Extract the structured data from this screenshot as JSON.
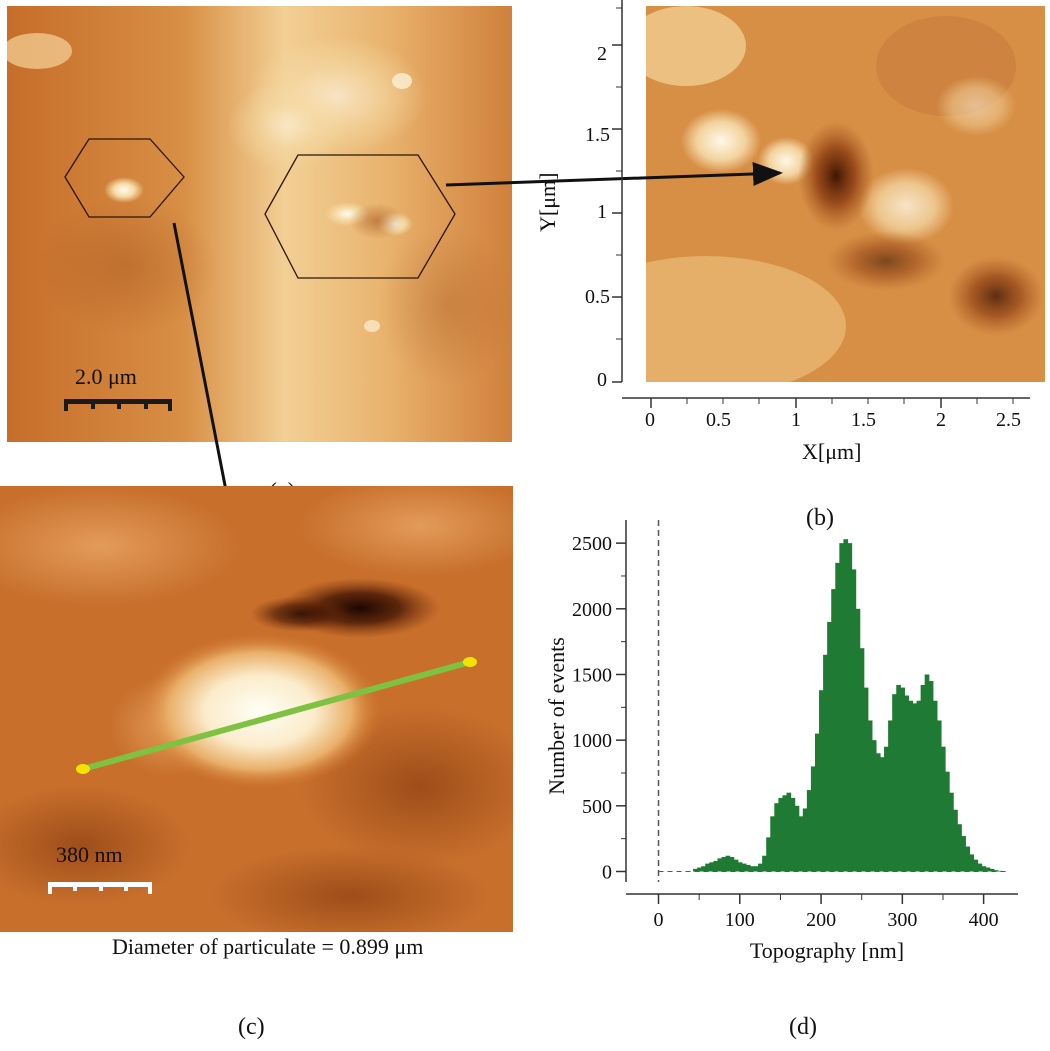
{
  "panels": {
    "a": {
      "label": "(a)",
      "scale_bar": "2.0 μm"
    },
    "b": {
      "label": "(b)",
      "xlabel": "X[μm]",
      "ylabel": "Y[μm]",
      "x_ticks": [
        "0",
        "0.5",
        "1",
        "1.5",
        "2",
        "2.5"
      ],
      "y_ticks": [
        "0",
        "0.5",
        "1",
        "1.5",
        "2"
      ]
    },
    "c": {
      "label": "(c)",
      "scale_bar": "380 nm",
      "caption": "Diameter of particulate = 0.899 μm"
    },
    "d": {
      "label": "(d)"
    }
  },
  "colors": {
    "afm_dark": "#5a2508",
    "afm_mid": "#c8702c",
    "afm_light": "#fff4da",
    "histogram": "#1f7a34",
    "line_profile": "#7fc241",
    "line_end": "#f2e400"
  },
  "chart_data": {
    "type": "bar",
    "xlabel": "Topography [nm]",
    "ylabel": "Number of events",
    "xlim": [
      -40,
      430
    ],
    "ylim": [
      -80,
      2600
    ],
    "x_ticks": [
      0,
      100,
      200,
      300,
      400
    ],
    "y_ticks": [
      0,
      500,
      1000,
      1500,
      2000,
      2500
    ],
    "reference_line_x": 0,
    "x": [
      45,
      50,
      55,
      60,
      65,
      70,
      75,
      80,
      85,
      90,
      95,
      100,
      105,
      110,
      115,
      120,
      125,
      130,
      135,
      140,
      145,
      150,
      155,
      160,
      165,
      170,
      175,
      180,
      185,
      190,
      195,
      200,
      205,
      210,
      215,
      220,
      225,
      230,
      235,
      240,
      245,
      250,
      255,
      260,
      265,
      270,
      275,
      280,
      285,
      290,
      295,
      300,
      305,
      310,
      315,
      320,
      325,
      330,
      335,
      340,
      345,
      350,
      355,
      360,
      365,
      370,
      375,
      380,
      385,
      390,
      395,
      400,
      405,
      410,
      415,
      420,
      425
    ],
    "values": [
      20,
      30,
      40,
      60,
      70,
      80,
      100,
      110,
      120,
      110,
      90,
      70,
      60,
      50,
      40,
      40,
      60,
      120,
      260,
      420,
      520,
      560,
      580,
      600,
      560,
      500,
      420,
      480,
      620,
      800,
      1050,
      1380,
      1650,
      1900,
      2150,
      2350,
      2500,
      2530,
      2500,
      2300,
      2000,
      1700,
      1400,
      1150,
      1000,
      900,
      870,
      950,
      1150,
      1350,
      1420,
      1400,
      1340,
      1300,
      1280,
      1300,
      1420,
      1500,
      1450,
      1300,
      1150,
      950,
      760,
      600,
      470,
      360,
      270,
      190,
      130,
      90,
      60,
      40,
      30,
      20,
      10,
      5,
      0
    ]
  }
}
